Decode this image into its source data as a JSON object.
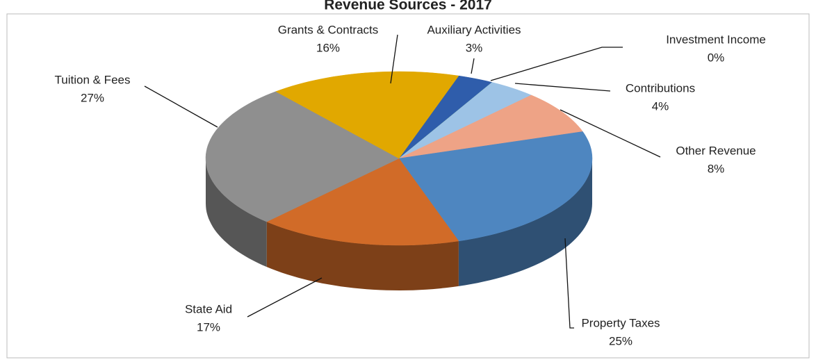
{
  "chart_data": {
    "type": "pie3d",
    "title": "Revenue Sources - 2017",
    "categories": [
      "Auxiliary Activities",
      "Investment Income",
      "Contributions",
      "Other Revenue",
      "Property Taxes",
      "State Aid",
      "Tuition & Fees",
      "Grants & Contracts"
    ],
    "values": [
      3,
      0,
      4,
      8,
      25,
      17,
      27,
      16
    ],
    "value_labels": [
      "3%",
      "0%",
      "4%",
      "8%",
      "25%",
      "17%",
      "27%",
      "16%"
    ],
    "colors": [
      "#2f5dab",
      "#70ad47",
      "#9dc3e6",
      "#eea386",
      "#4e86c0",
      "#d16b28",
      "#8f8f8f",
      "#e1a800"
    ]
  }
}
